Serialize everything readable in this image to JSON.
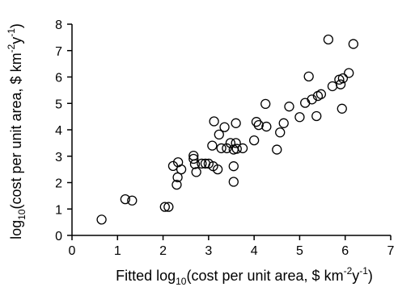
{
  "chart_data": {
    "type": "scatter",
    "xlabel": {
      "pre": "Fitted log",
      "sub": "10",
      "mid": "(cost per unit area, $ km",
      "sup1": "-2",
      "mid2": "y",
      "sup2": "-1",
      "post": ")"
    },
    "ylabel": {
      "pre": "log",
      "sub": "10",
      "mid": "(cost per unit area, $ km",
      "sup1": "-2",
      "mid2": "y",
      "sup2": "-1",
      "post": ")"
    },
    "xlim": [
      0,
      7
    ],
    "ylim": [
      0,
      8
    ],
    "xticks": [
      "0",
      "1",
      "2",
      "3",
      "4",
      "5",
      "6",
      "7"
    ],
    "yticks": [
      "0",
      "1",
      "2",
      "3",
      "4",
      "5",
      "6",
      "7",
      "8"
    ],
    "grid": false,
    "marker": "open-circle",
    "points": [
      [
        0.65,
        0.6
      ],
      [
        1.17,
        1.37
      ],
      [
        1.32,
        1.32
      ],
      [
        2.04,
        1.08
      ],
      [
        2.12,
        1.08
      ],
      [
        2.22,
        2.63
      ],
      [
        2.33,
        2.77
      ],
      [
        2.32,
        2.2
      ],
      [
        2.3,
        1.92
      ],
      [
        2.4,
        2.5
      ],
      [
        2.67,
        3.02
      ],
      [
        2.67,
        2.9
      ],
      [
        2.7,
        2.7
      ],
      [
        2.73,
        2.4
      ],
      [
        2.85,
        2.72
      ],
      [
        2.93,
        2.72
      ],
      [
        3.0,
        2.72
      ],
      [
        3.1,
        2.62
      ],
      [
        3.2,
        2.5
      ],
      [
        3.08,
        3.4
      ],
      [
        3.12,
        4.32
      ],
      [
        3.23,
        3.82
      ],
      [
        3.28,
        3.3
      ],
      [
        3.35,
        4.1
      ],
      [
        3.4,
        3.3
      ],
      [
        3.48,
        3.5
      ],
      [
        3.55,
        3.25
      ],
      [
        3.6,
        3.5
      ],
      [
        3.6,
        4.25
      ],
      [
        3.55,
        2.62
      ],
      [
        3.55,
        2.03
      ],
      [
        3.75,
        3.3
      ],
      [
        3.62,
        3.28
      ],
      [
        4.0,
        3.6
      ],
      [
        4.05,
        4.3
      ],
      [
        4.1,
        4.18
      ],
      [
        4.25,
        4.98
      ],
      [
        4.27,
        4.12
      ],
      [
        4.5,
        3.25
      ],
      [
        4.57,
        3.9
      ],
      [
        4.65,
        4.25
      ],
      [
        4.77,
        4.88
      ],
      [
        5.0,
        4.48
      ],
      [
        5.12,
        5.02
      ],
      [
        5.2,
        6.02
      ],
      [
        5.27,
        5.15
      ],
      [
        5.37,
        4.52
      ],
      [
        5.4,
        5.28
      ],
      [
        5.47,
        5.35
      ],
      [
        5.63,
        7.42
      ],
      [
        5.72,
        5.65
      ],
      [
        5.87,
        5.9
      ],
      [
        5.9,
        5.72
      ],
      [
        5.93,
        4.8
      ],
      [
        5.95,
        5.95
      ],
      [
        6.08,
        6.15
      ],
      [
        6.18,
        7.25
      ]
    ]
  }
}
